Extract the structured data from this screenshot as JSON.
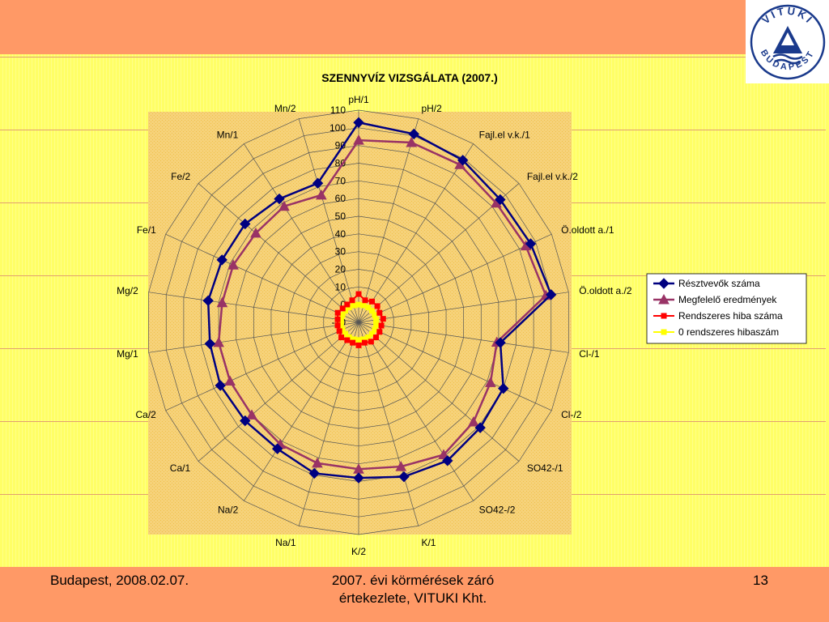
{
  "footer": {
    "left": "Budapest, 2008.02.07.",
    "center_line1": "2007. évi körmérések záró",
    "center_line2": "értekezlete, VITUKI Kht.",
    "page_number": "13"
  },
  "logo": {
    "top_text": "VITUKI",
    "bottom_text": "BUDAPEST"
  },
  "colors": {
    "header_band": "#FF9966",
    "slide_background": "#FFFF66",
    "plot_area": "#F6D27A",
    "series_participants": "#000080",
    "series_correct": "#993366",
    "series_sys_error": "#FF0000",
    "series_zero_error": "#FFFF00"
  },
  "chart_data": {
    "type": "radar",
    "title": "SZENNYVÍZ VIZSGÁLATA (2007.)",
    "categories": [
      "pH/1",
      "pH/2",
      "Fajl.el v.k./1",
      "Fajl.el v.k./2",
      "Ö.oldott a./1",
      "Ö.oldott a./2",
      "Cl-/1",
      "Cl-/2",
      "SO42-/1",
      "SO42-/2",
      "K/1",
      "K/2",
      "Na/1",
      "Na/2",
      "Ca/1",
      "Ca/2",
      "Mg/1",
      "Mg/2",
      "Fe/1",
      "Fe/2",
      "Mn/1",
      "Mn/2"
    ],
    "r_ticks": [
      "-10",
      "0",
      "10",
      "20",
      "30",
      "40",
      "50",
      "60",
      "70",
      "80",
      "90",
      "100",
      "110"
    ],
    "rlim": [
      -10,
      110
    ],
    "grid": true,
    "legend_position": "right",
    "series": [
      {
        "name": "Résztvevők száma",
        "marker": "diamond",
        "values": [
          103,
          101,
          99,
          96,
          97,
          100,
          71,
          80,
          81,
          83,
          81,
          78,
          79,
          75,
          75,
          76,
          75,
          76,
          75,
          75,
          73,
          72
        ]
      },
      {
        "name": "Megfelelő eredmények",
        "marker": "triangle",
        "values": [
          93,
          96,
          96,
          93,
          94,
          97,
          69,
          72,
          76,
          79,
          75,
          73,
          73,
          72,
          70,
          70,
          70,
          68,
          68,
          67,
          68,
          65
        ]
      },
      {
        "name": "Rendszeres hiba száma",
        "marker": "square",
        "values": [
          6,
          3,
          4,
          4,
          3,
          4,
          3,
          3,
          3,
          3,
          2,
          3,
          2,
          2,
          3,
          2,
          2,
          2,
          3,
          2,
          2,
          3
        ]
      },
      {
        "name": "0 rendszeres hibaszám",
        "marker": "square",
        "values": [
          0,
          0,
          0,
          0,
          0,
          0,
          0,
          0,
          0,
          0,
          0,
          0,
          0,
          0,
          0,
          0,
          0,
          0,
          0,
          0,
          0,
          0
        ]
      }
    ]
  }
}
